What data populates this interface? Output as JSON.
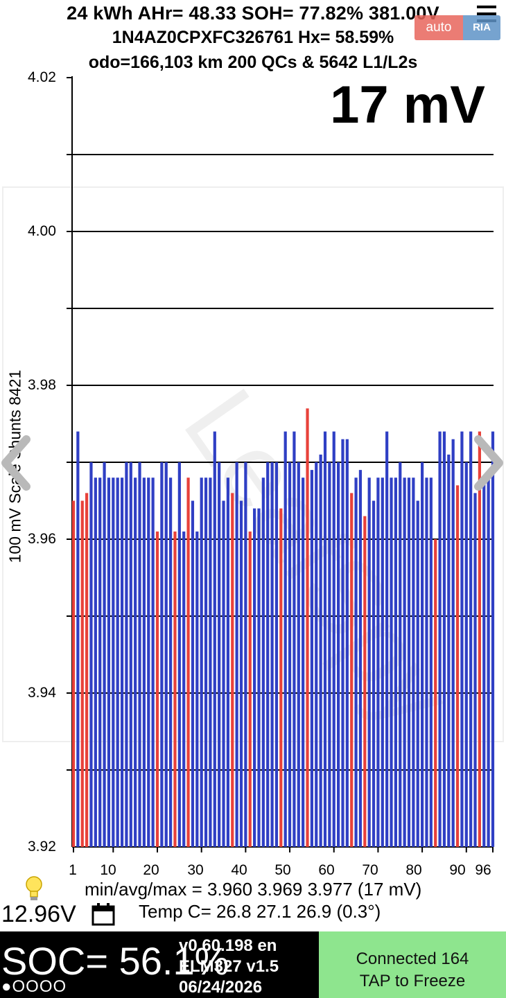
{
  "header": {
    "line1": "24 kWh  AHr= 48.33 SOH= 77.82% 381.00V",
    "line2": "1N4AZ0CPXFC326761   Hx= 58.59%",
    "line3": "odo=166,103 km 200 QCs & 5642 L1/L2s"
  },
  "watermark": {
    "logo_left": "auto",
    "logo_right": "RIA",
    "text": "LeafSpy"
  },
  "spread_label": "17 mV",
  "chart_data": {
    "type": "bar",
    "ylabel": "100 mV Scale Shunts 8421",
    "ylim": [
      3.92,
      4.02
    ],
    "y_ticks": [
      "4.02",
      "4.00",
      "3.98",
      "3.96",
      "3.94",
      "3.92"
    ],
    "y_gridlines": [
      4.01,
      4.0,
      3.99,
      3.98,
      3.97,
      3.96,
      3.95,
      3.94,
      3.93
    ],
    "x_ticks": [
      "1",
      "10",
      "20",
      "30",
      "40",
      "50",
      "60",
      "70",
      "80",
      "90",
      "96"
    ],
    "x_tick_cells": [
      1,
      10,
      20,
      30,
      40,
      50,
      60,
      70,
      80,
      90,
      96
    ],
    "cell_count": 96,
    "colors": {
      "normal": "#2f3fc4",
      "shunt": "#e8413a"
    },
    "values": [
      3.965,
      3.974,
      3.965,
      3.966,
      3.97,
      3.968,
      3.968,
      3.97,
      3.968,
      3.968,
      3.968,
      3.968,
      3.97,
      3.97,
      3.968,
      3.97,
      3.968,
      3.968,
      3.968,
      3.961,
      3.97,
      3.97,
      3.968,
      3.961,
      3.97,
      3.961,
      3.968,
      3.965,
      3.961,
      3.968,
      3.968,
      3.968,
      3.974,
      3.97,
      3.965,
      3.968,
      3.966,
      3.97,
      3.965,
      3.97,
      3.961,
      3.964,
      3.964,
      3.968,
      3.97,
      3.97,
      3.97,
      3.964,
      3.974,
      3.97,
      3.974,
      3.97,
      3.968,
      3.977,
      3.969,
      3.97,
      3.971,
      3.974,
      3.97,
      3.974,
      3.97,
      3.973,
      3.973,
      3.966,
      3.968,
      3.969,
      3.963,
      3.968,
      3.965,
      3.968,
      3.968,
      3.974,
      3.968,
      3.968,
      3.97,
      3.968,
      3.968,
      3.968,
      3.965,
      3.97,
      3.968,
      3.968,
      3.96,
      3.974,
      3.974,
      3.971,
      3.973,
      3.967,
      3.974,
      3.97,
      3.974,
      3.966,
      3.974,
      3.968,
      3.968,
      3.974
    ],
    "shunted_cells": [
      1,
      3,
      4,
      20,
      24,
      27,
      37,
      41,
      48,
      54,
      64,
      67,
      83,
      88,
      93
    ]
  },
  "stats": {
    "min_avg_max": "min/avg/max = 3.960  3.969  3.977  (17 mV)",
    "temp": "Temp C= 26.8  27.1  26.9  (0.3°)"
  },
  "aux_voltage": "12.96V",
  "soc": "SOC= 56.1%",
  "dots": "●OOOO",
  "info": {
    "version": "v0.60.198 en",
    "adapter": "ELM327 v1.5",
    "date": "06/24/2026"
  },
  "status_button": {
    "line1": "Connected 164",
    "line2": "TAP to Freeze",
    "color": "#8ee58e"
  }
}
